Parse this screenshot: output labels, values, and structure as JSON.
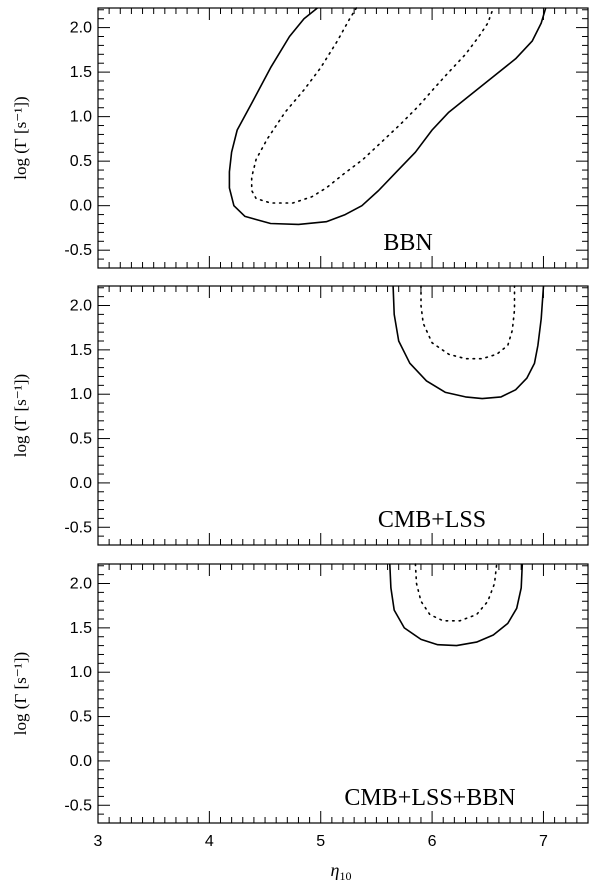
{
  "chart_data": {
    "type": "line",
    "xlabel_symbol": "η",
    "xlabel_subscript": "10",
    "xlim": [
      3,
      7.4
    ],
    "x_ticks": [
      "3",
      "4",
      "5",
      "6",
      "7"
    ],
    "x_tick_values": [
      3,
      4,
      5,
      6,
      7
    ],
    "ylim": [
      -0.7,
      2.22
    ],
    "y_ticks": [
      "-0.5",
      "0.0",
      "0.5",
      "1.0",
      "1.5",
      "2.0"
    ],
    "y_tick_values": [
      -0.5,
      0.0,
      0.5,
      1.0,
      1.5,
      2.0
    ],
    "grid": false,
    "panels": [
      {
        "label": "BBN",
        "ylabel": "log (Γ [s⁻¹])",
        "series": [
          {
            "style": "solid",
            "x": [
              4.97,
              4.85,
              4.72,
              4.55,
              4.38,
              4.25,
              4.2,
              4.18,
              4.18,
              4.22,
              4.32,
              4.55,
              4.8,
              5.05,
              5.22,
              5.37,
              5.52,
              5.68,
              5.85,
              6.0,
              6.15,
              6.35,
              6.55,
              6.75,
              6.9,
              6.98,
              7.02
            ],
            "y": [
              2.22,
              2.1,
              1.9,
              1.55,
              1.15,
              0.85,
              0.6,
              0.38,
              0.2,
              0.0,
              -0.12,
              -0.2,
              -0.21,
              -0.18,
              -0.1,
              0.0,
              0.17,
              0.38,
              0.6,
              0.85,
              1.05,
              1.25,
              1.45,
              1.65,
              1.85,
              2.05,
              2.22
            ]
          },
          {
            "style": "dotted",
            "x": [
              5.32,
              5.26,
              5.15,
              5.0,
              4.85,
              4.68,
              4.52,
              4.42,
              4.38,
              4.38,
              4.42,
              4.55,
              4.75,
              4.92,
              5.05,
              5.2,
              5.38,
              5.55,
              5.72,
              5.88,
              6.02,
              6.15,
              6.3,
              6.42,
              6.5,
              6.55
            ],
            "y": [
              2.22,
              2.1,
              1.85,
              1.55,
              1.3,
              1.05,
              0.75,
              0.52,
              0.32,
              0.17,
              0.08,
              0.03,
              0.03,
              0.1,
              0.2,
              0.35,
              0.52,
              0.72,
              0.92,
              1.12,
              1.32,
              1.5,
              1.7,
              1.9,
              2.05,
              2.22
            ]
          }
        ]
      },
      {
        "label": "CMB+LSS",
        "ylabel": "log (Γ [s⁻¹])",
        "series": [
          {
            "style": "solid",
            "x": [
              5.65,
              5.66,
              5.7,
              5.8,
              5.95,
              6.12,
              6.3,
              6.45,
              6.62,
              6.75,
              6.85,
              6.92,
              6.95,
              6.98,
              7.0
            ],
            "y": [
              2.22,
              1.9,
              1.6,
              1.35,
              1.15,
              1.02,
              0.97,
              0.95,
              0.97,
              1.05,
              1.18,
              1.35,
              1.55,
              1.85,
              2.22
            ]
          },
          {
            "style": "dotted",
            "x": [
              5.9,
              5.9,
              5.92,
              6.0,
              6.15,
              6.3,
              6.45,
              6.58,
              6.68,
              6.72,
              6.74,
              6.74
            ],
            "y": [
              2.22,
              2.0,
              1.8,
              1.58,
              1.45,
              1.4,
              1.4,
              1.45,
              1.55,
              1.72,
              1.95,
              2.22
            ]
          }
        ]
      },
      {
        "label": "CMB+LSS+BBN",
        "ylabel": "log (Γ [s⁻¹])",
        "series": [
          {
            "style": "solid",
            "x": [
              5.62,
              5.63,
              5.66,
              5.75,
              5.9,
              6.05,
              6.22,
              6.4,
              6.55,
              6.68,
              6.76,
              6.8,
              6.81
            ],
            "y": [
              2.22,
              1.95,
              1.7,
              1.5,
              1.37,
              1.31,
              1.3,
              1.34,
              1.42,
              1.55,
              1.72,
              1.95,
              2.22
            ]
          },
          {
            "style": "dotted",
            "x": [
              5.85,
              5.86,
              5.9,
              5.98,
              6.1,
              6.25,
              6.4,
              6.5,
              6.56,
              6.58
            ],
            "y": [
              2.22,
              2.0,
              1.8,
              1.65,
              1.58,
              1.58,
              1.65,
              1.8,
              2.0,
              2.22
            ]
          }
        ]
      }
    ]
  }
}
